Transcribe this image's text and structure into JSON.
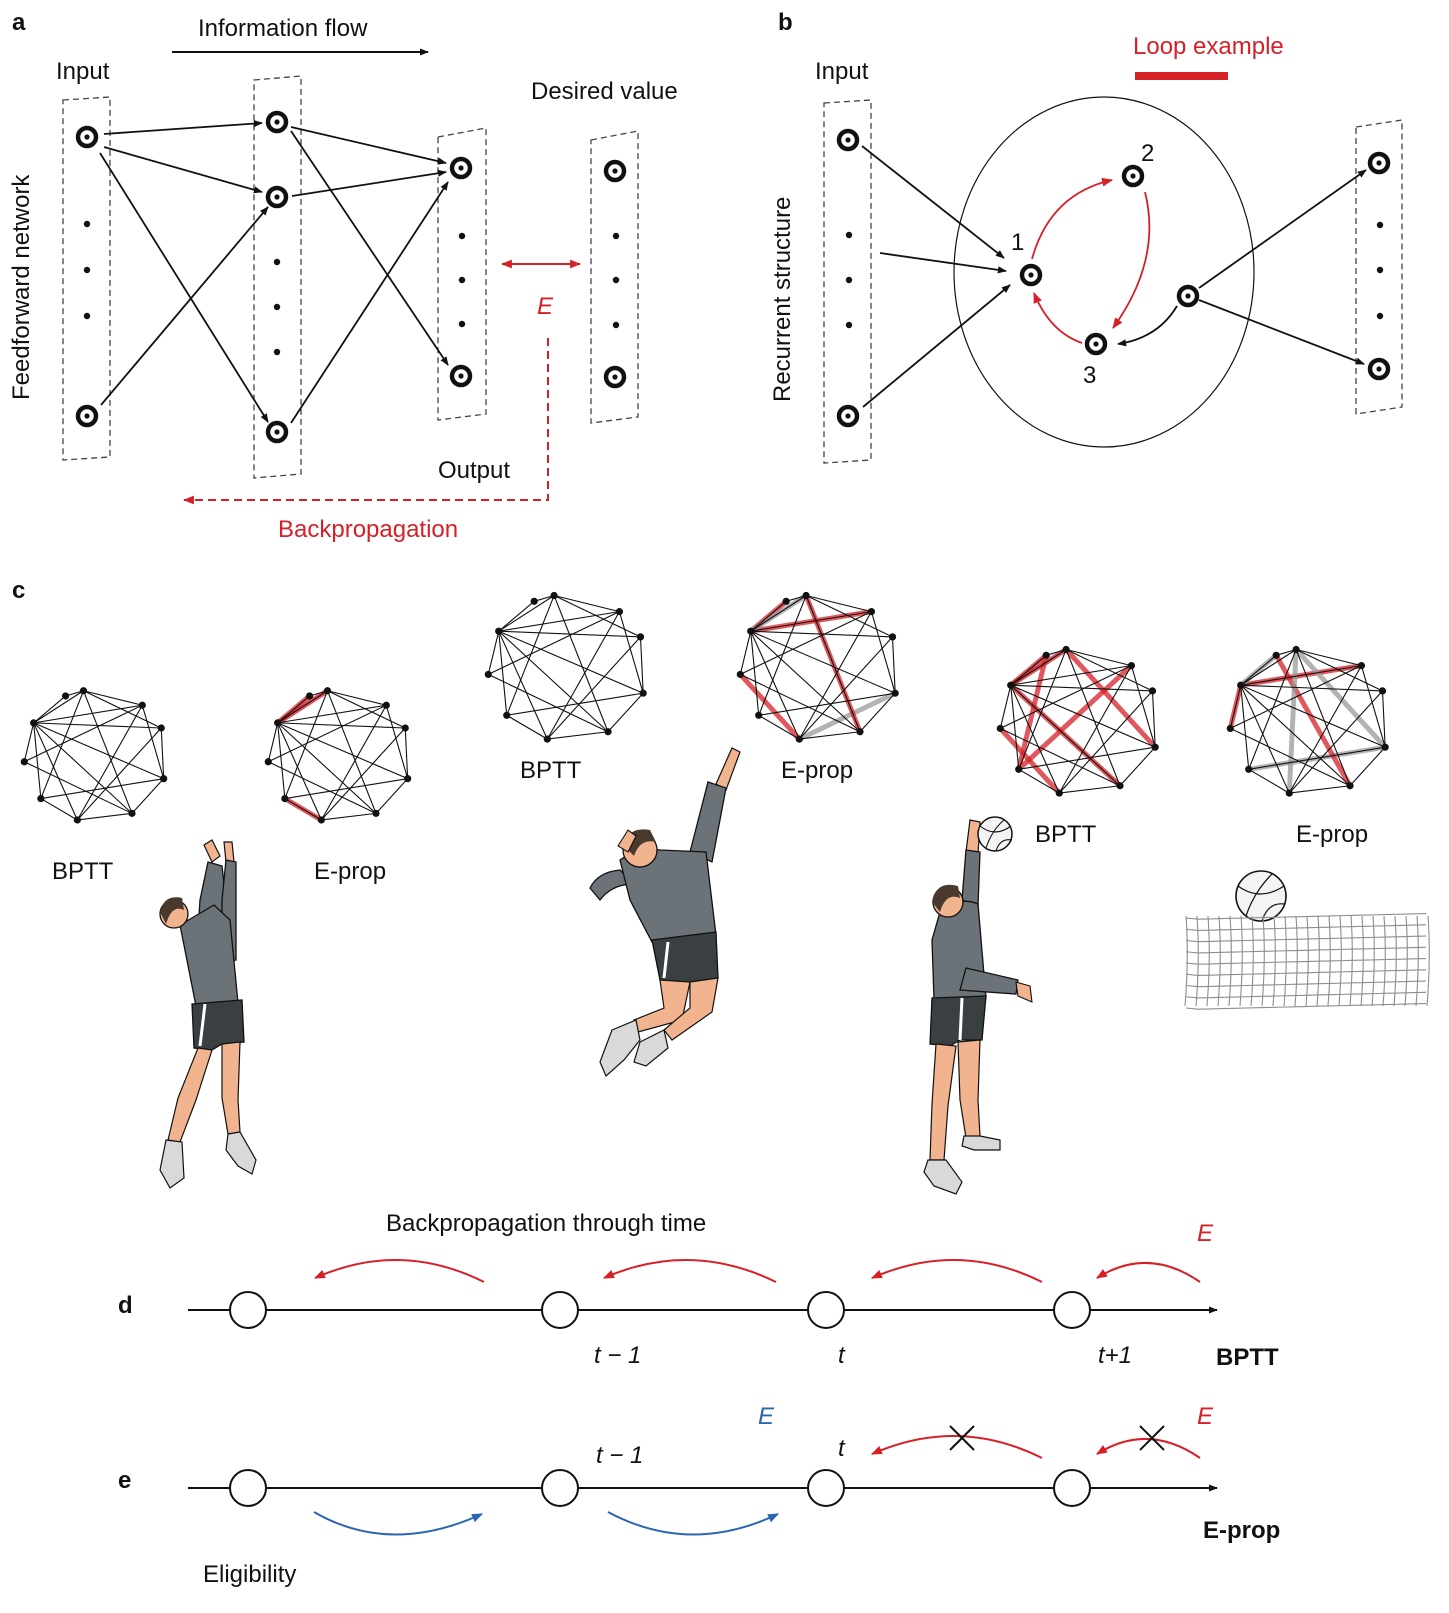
{
  "colors": {
    "red": "#d62027",
    "blue": "#2a66b3",
    "gray": "#9a9a9a",
    "shirt": "#6b7378",
    "shorts": "#3a3f42",
    "skin": "#f2b48f",
    "shoe": "#d9d9d9"
  },
  "panel_a": {
    "tag": "a",
    "flow_label": "Information flow",
    "input_label": "Input",
    "desired_label": "Desired value",
    "output_label": "Output",
    "error_label": "E",
    "backprop_label": "Backpropagation",
    "side_label": "Feedforward network"
  },
  "panel_b": {
    "tag": "b",
    "input_label": "Input",
    "loop_label": "Loop example",
    "side_label": "Recurrent structure",
    "node_labels": [
      "1",
      "2",
      "3"
    ]
  },
  "panel_c": {
    "tag": "c",
    "labels": [
      "BPTT",
      "E-prop",
      "BPTT",
      "E-prop",
      "BPTT",
      "E-prop"
    ],
    "icons": [
      "player-jump-icon",
      "player-spike-icon",
      "player-serve-icon",
      "volleyball-icon",
      "net-icon"
    ]
  },
  "panel_d": {
    "tag": "d",
    "title": "Backpropagation through time",
    "error_label": "E",
    "time_labels": [
      "t − 1",
      "t",
      "t+1"
    ],
    "method": "BPTT"
  },
  "panel_e": {
    "tag": "e",
    "error_red": "E",
    "error_blue": "E",
    "time_labels": [
      "t − 1",
      "t"
    ],
    "eligibility_label": "Eligibility",
    "method": "E-prop"
  }
}
